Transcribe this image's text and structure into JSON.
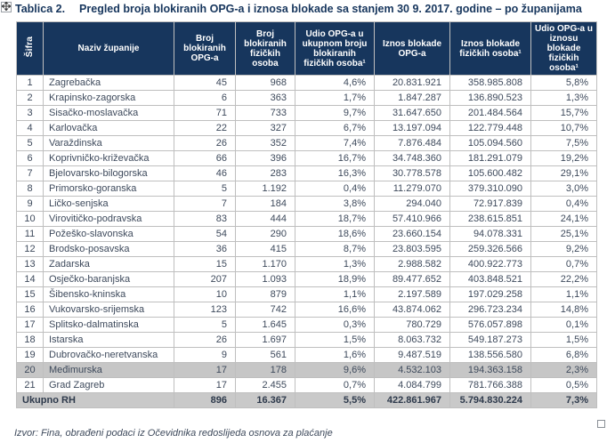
{
  "title": {
    "label": "Tablica 2.",
    "text": "Pregled broja blokiranih OPG-a i iznosa blokade sa stanjem 30 9. 2017. godine – po županijama"
  },
  "icons": {
    "move_handle": "four-arrow-move-cross",
    "resize_handle": "small-square"
  },
  "colors": {
    "header_bg": "#17365D",
    "header_text": "#FFFFFF",
    "border": "#BFBFBF",
    "body_text": "#3E4A5C",
    "highlight_row_bg": "#C6C6C6",
    "total_row_bg": "#C9C9C9",
    "title_text": "#17365D"
  },
  "table": {
    "columns": [
      "Šifra",
      "Naziv županije",
      "Broj blokiranih OPG-a",
      "Broj blokiranih fizičkih osoba",
      "Udio OPG-a u ukupnom broju blokiranih fizičkih osoba¹",
      "Iznos blokade OPG-a",
      "Iznos blokade fizičkih osoba¹",
      "Udio OPG-a u iznosu blokade fizičkih osoba¹"
    ],
    "rows": [
      [
        "1",
        "Zagrebačka",
        "45",
        "968",
        "4,6%",
        "20.831.921",
        "358.985.808",
        "5,8%"
      ],
      [
        "2",
        "Krapinsko-zagorska",
        "6",
        "363",
        "1,7%",
        "1.847.287",
        "136.890.523",
        "1,3%"
      ],
      [
        "3",
        "Sisačko-moslavačka",
        "71",
        "733",
        "9,7%",
        "31.647.650",
        "201.484.564",
        "15,7%"
      ],
      [
        "4",
        "Karlovačka",
        "22",
        "327",
        "6,7%",
        "13.197.094",
        "122.779.448",
        "10,7%"
      ],
      [
        "5",
        "Varaždinska",
        "26",
        "352",
        "7,4%",
        "7.876.484",
        "105.094.560",
        "7,5%"
      ],
      [
        "6",
        "Koprivničko-križevačka",
        "66",
        "396",
        "16,7%",
        "34.748.360",
        "181.291.079",
        "19,2%"
      ],
      [
        "7",
        "Bjelovarsko-bilogorska",
        "46",
        "283",
        "16,3%",
        "30.778.578",
        "105.600.482",
        "29,1%"
      ],
      [
        "8",
        "Primorsko-goranska",
        "5",
        "1.192",
        "0,4%",
        "11.279.070",
        "379.310.090",
        "3,0%"
      ],
      [
        "9",
        "Ličko-senjska",
        "7",
        "184",
        "3,8%",
        "294.040",
        "72.917.839",
        "0,4%"
      ],
      [
        "10",
        "Virovitičko-podravska",
        "83",
        "444",
        "18,7%",
        "57.410.966",
        "238.615.851",
        "24,1%"
      ],
      [
        "11",
        "Požeško-slavonska",
        "54",
        "290",
        "18,6%",
        "23.660.154",
        "94.078.331",
        "25,1%"
      ],
      [
        "12",
        "Brodsko-posavska",
        "36",
        "415",
        "8,7%",
        "23.803.595",
        "259.326.566",
        "9,2%"
      ],
      [
        "13",
        "Zadarska",
        "15",
        "1.170",
        "1,3%",
        "2.988.582",
        "400.922.773",
        "0,7%"
      ],
      [
        "14",
        "Osječko-baranjska",
        "207",
        "1.093",
        "18,9%",
        "89.477.652",
        "403.848.521",
        "22,2%"
      ],
      [
        "15",
        "Šibensko-kninska",
        "10",
        "879",
        "1,1%",
        "2.197.589",
        "197.029.258",
        "1,1%"
      ],
      [
        "16",
        "Vukovarsko-srijemska",
        "123",
        "742",
        "16,6%",
        "43.874.062",
        "296.723.234",
        "14,8%"
      ],
      [
        "17",
        "Splitsko-dalmatinska",
        "5",
        "1.645",
        "0,3%",
        "780.729",
        "576.057.898",
        "0,1%"
      ],
      [
        "18",
        "Istarska",
        "26",
        "1.697",
        "1,5%",
        "8.063.732",
        "549.187.273",
        "1,5%"
      ],
      [
        "19",
        "Dubrovačko-neretvanska",
        "9",
        "561",
        "1,6%",
        "9.487.519",
        "138.556.580",
        "6,8%"
      ],
      [
        "20",
        "Međimurska",
        "17",
        "178",
        "9,6%",
        "4.532.103",
        "194.363.158",
        "2,3%"
      ],
      [
        "21",
        "Grad Zagreb",
        "17",
        "2.455",
        "0,7%",
        "4.084.799",
        "781.766.388",
        "0,5%"
      ]
    ],
    "highlighted_row": "20",
    "total": {
      "label": "Ukupno RH",
      "values": [
        "896",
        "16.367",
        "5,5%",
        "422.861.967",
        "5.794.830.224",
        "7,3%"
      ]
    }
  },
  "footer": {
    "source": "Izvor: Fina, obrađeni podaci iz Očevidnika redoslijeda osnova za plaćanje"
  }
}
